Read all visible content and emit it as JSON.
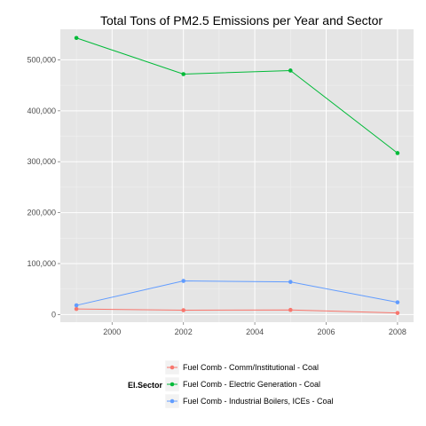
{
  "chart_data": {
    "type": "line",
    "title": "Total Tons of PM2.5 Emissions per Year and Sector",
    "xlabel": "",
    "ylabel": "",
    "x": [
      1999,
      2002,
      2005,
      2008
    ],
    "xlim": [
      1998.55,
      2008.45
    ],
    "ylim": [
      -15000,
      560000
    ],
    "xticks": [
      2000,
      2002,
      2004,
      2006,
      2008
    ],
    "xtick_labels": [
      "2000",
      "2002",
      "2004",
      "2006",
      "2008"
    ],
    "yticks": [
      0,
      100000,
      200000,
      300000,
      400000,
      500000
    ],
    "ytick_labels": [
      "0",
      "100,000",
      "200,000",
      "300,000",
      "400,000",
      "500,000"
    ],
    "grid": true,
    "legend_position": "bottom",
    "legend_title": "EI.Sector",
    "series": [
      {
        "name": "Fuel Comb - Comm/Institutional - Coal",
        "color": "#F8766D",
        "values": [
          11000,
          8500,
          9000,
          3000
        ]
      },
      {
        "name": "Fuel Comb - Electric Generation - Coal",
        "color": "#00BA38",
        "values": [
          543000,
          472000,
          479000,
          317000
        ]
      },
      {
        "name": "Fuel Comb - Industrial Boilers, ICEs - Coal",
        "color": "#619CFF",
        "values": [
          18000,
          66000,
          64000,
          24000
        ]
      }
    ]
  }
}
